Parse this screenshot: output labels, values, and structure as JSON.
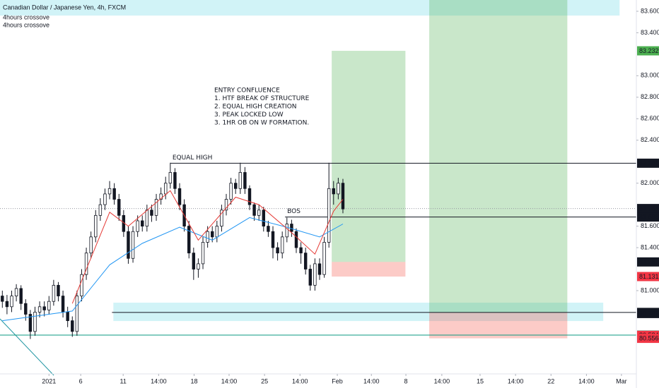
{
  "chart_data": {
    "type": "candlestick",
    "title": "Canadian Dollar / Japanese Yen, 4h, FXCM",
    "indicator_labels": [
      "4hours crossove",
      "4hours crossove"
    ],
    "annotation_lines": [
      "ENTRY CONFLUENCE",
      "1. HTF BREAK OF STRUCTURE",
      "2. EQUAL HIGH CREATION",
      "3. PEAK LOCKED LOW",
      "3.  1HR OB ON W FORMATION."
    ],
    "open": [
      80.95,
      80.9,
      80.85,
      80.95,
      81.02,
      80.88,
      80.78,
      80.62,
      80.8,
      80.85,
      80.82,
      80.9,
      81.05,
      80.95,
      80.8,
      80.72,
      80.62,
      80.95,
      81.15,
      81.35,
      81.5,
      81.7,
      81.8,
      81.9,
      81.95,
      81.85,
      81.7,
      81.55,
      81.3,
      81.55,
      81.65,
      81.6,
      81.75,
      81.7,
      81.85,
      81.9,
      82.0,
      82.1,
      81.95,
      81.8,
      81.6,
      81.35,
      81.2,
      81.25,
      81.45,
      81.55,
      81.5,
      81.6,
      81.75,
      81.85,
      82.0,
      81.95,
      82.1,
      81.95,
      81.8,
      81.7,
      81.75,
      81.6,
      81.55,
      81.4,
      81.35,
      81.5,
      81.62,
      81.55,
      81.4,
      81.35,
      81.2,
      81.05,
      81.25,
      81.15,
      81.45,
      81.95,
      81.9,
      82.0
    ],
    "high": [
      81.0,
      80.96,
      81.0,
      81.06,
      81.05,
      80.92,
      80.82,
      80.85,
      80.9,
      80.9,
      80.95,
      81.1,
      81.08,
      81.0,
      80.85,
      80.76,
      81.0,
      81.2,
      81.4,
      81.55,
      81.75,
      81.86,
      81.95,
      82.02,
      82.0,
      81.9,
      81.75,
      81.6,
      81.6,
      81.7,
      81.7,
      81.8,
      81.8,
      81.9,
      81.96,
      82.06,
      82.19,
      82.14,
      82.0,
      81.85,
      81.65,
      81.4,
      81.3,
      81.5,
      81.6,
      81.6,
      81.65,
      81.8,
      81.9,
      82.05,
      82.04,
      82.19,
      82.15,
      81.98,
      81.82,
      81.8,
      81.78,
      81.65,
      81.6,
      81.45,
      81.55,
      81.68,
      81.66,
      81.58,
      81.45,
      81.4,
      81.24,
      81.3,
      81.3,
      81.5,
      82.19,
      82.02,
      82.05,
      82.04
    ],
    "low": [
      80.84,
      80.78,
      80.8,
      80.9,
      80.82,
      80.72,
      80.55,
      80.58,
      80.75,
      80.76,
      80.78,
      80.86,
      80.9,
      80.75,
      80.66,
      80.57,
      80.58,
      80.9,
      81.1,
      81.3,
      81.45,
      81.65,
      81.75,
      81.85,
      81.8,
      81.65,
      81.5,
      81.25,
      81.26,
      81.5,
      81.55,
      81.55,
      81.64,
      81.65,
      81.8,
      81.85,
      81.95,
      81.9,
      81.75,
      81.55,
      81.3,
      81.1,
      81.12,
      81.2,
      81.4,
      81.45,
      81.45,
      81.55,
      81.7,
      81.8,
      81.9,
      81.9,
      81.9,
      81.75,
      81.65,
      81.65,
      81.55,
      81.5,
      81.3,
      81.28,
      81.3,
      81.45,
      81.5,
      81.35,
      81.25,
      81.15,
      81.0,
      81.0,
      81.1,
      81.12,
      81.4,
      81.8,
      81.85,
      81.72
    ],
    "close": [
      80.9,
      80.85,
      80.95,
      81.02,
      80.88,
      80.78,
      80.62,
      80.8,
      80.85,
      80.82,
      80.9,
      81.05,
      80.95,
      80.8,
      80.72,
      80.62,
      80.95,
      81.15,
      81.35,
      81.5,
      81.7,
      81.8,
      81.9,
      81.95,
      81.85,
      81.7,
      81.55,
      81.3,
      81.55,
      81.65,
      81.6,
      81.75,
      81.7,
      81.85,
      81.9,
      82.0,
      82.1,
      81.95,
      81.8,
      81.6,
      81.35,
      81.2,
      81.25,
      81.45,
      81.55,
      81.5,
      81.6,
      81.75,
      81.85,
      82.0,
      81.95,
      82.1,
      81.95,
      81.8,
      81.7,
      81.75,
      81.6,
      81.55,
      81.4,
      81.35,
      81.5,
      81.62,
      81.55,
      81.4,
      81.35,
      81.2,
      81.05,
      81.25,
      81.15,
      81.45,
      81.95,
      81.9,
      82.0,
      81.76
    ],
    "series": [
      {
        "color": "#2196f3",
        "x": [
          0,
          15,
          23,
          30,
          38,
          45,
          53,
          61,
          68,
          73
        ],
        "values": [
          80.72,
          80.81,
          81.24,
          81.44,
          81.59,
          81.47,
          81.68,
          81.59,
          81.5,
          81.62
        ]
      },
      {
        "color": "#e53935",
        "x": [
          15,
          23,
          27,
          36,
          42,
          50,
          55,
          62,
          67,
          71,
          73
        ],
        "values": [
          80.88,
          81.73,
          81.6,
          81.93,
          81.47,
          81.87,
          81.8,
          81.54,
          81.34,
          81.74,
          81.85
        ]
      }
    ],
    "xlim": [
      -0.5,
      135.9
    ],
    "ylim": [
      80.225,
      83.705
    ],
    "xticks": [
      {
        "value": 10,
        "label": "2021"
      },
      {
        "value": 16.8,
        "label": "6"
      },
      {
        "value": 25.9,
        "label": "11"
      },
      {
        "value": 33.5,
        "label": "14:00"
      },
      {
        "value": 41.1,
        "label": "18"
      },
      {
        "value": 48.6,
        "label": "14:00"
      },
      {
        "value": 56.2,
        "label": "25"
      },
      {
        "value": 63.8,
        "label": "14:00"
      },
      {
        "value": 71.8,
        "label": "Feb"
      },
      {
        "value": 79.1,
        "label": "14:00"
      },
      {
        "value": 86.5,
        "label": "8"
      },
      {
        "value": 94.2,
        "label": "14:00"
      },
      {
        "value": 102.4,
        "label": "15"
      },
      {
        "value": 110,
        "label": "14:00"
      },
      {
        "value": 117.6,
        "label": "22"
      },
      {
        "value": 125.2,
        "label": "14:00"
      },
      {
        "value": 132.7,
        "label": "Mar"
      }
    ],
    "yticks": [
      {
        "value": 83.6,
        "label": "83.600"
      },
      {
        "value": 83.4,
        "label": "83.400"
      },
      {
        "value": 83.0,
        "label": "83.000"
      },
      {
        "value": 82.8,
        "label": "82.800"
      },
      {
        "value": 82.6,
        "label": "82.600"
      },
      {
        "value": 82.4,
        "label": "82.400"
      },
      {
        "value": 82.0,
        "label": "82.000"
      },
      {
        "value": 81.6,
        "label": "81.600"
      },
      {
        "value": 81.4,
        "label": "81.400"
      },
      {
        "value": 81.0,
        "label": "81.000"
      }
    ],
    "zones": [
      {
        "x": [
          -0.5,
          132.3
        ],
        "y": [
          83.56,
          83.705
        ],
        "color": "rgba(0,188,212,0.18)"
      },
      {
        "x": [
          23.8,
          128.8
        ],
        "y": [
          80.717,
          80.888
        ],
        "color": "rgba(0,188,212,0.18)"
      },
      {
        "x": [
          70.6,
          86.4
        ],
        "y": [
          81.267,
          83.232
        ],
        "color": "rgba(76,175,80,0.3)"
      },
      {
        "x": [
          70.6,
          86.4
        ],
        "y": [
          81.131,
          81.267
        ],
        "color": "rgba(244,67,54,0.28)"
      },
      {
        "x": [
          91.5,
          121.1
        ],
        "y": [
          80.797,
          83.705
        ],
        "color": "rgba(76,175,80,0.3)"
      },
      {
        "x": [
          91.5,
          121.1
        ],
        "y": [
          80.556,
          80.797
        ],
        "color": "rgba(244,67,54,0.28)"
      }
    ],
    "levels": [
      {
        "price": 82.186,
        "x_start": 36,
        "color": "#131722",
        "label": "EQUAL HIGH"
      },
      {
        "price": 81.685,
        "x_start": 60.6,
        "color": "#131722",
        "label": "BOS"
      },
      {
        "price": 80.797,
        "x_start": 23.5,
        "color": "#131722"
      },
      {
        "price": 80.586,
        "x_start": -0.5,
        "color": "#089981"
      },
      {
        "price": 81.764,
        "x_start": -0.5,
        "color": "#9598a1",
        "dashed": true
      }
    ],
    "price_tags": [
      {
        "value": 83.232,
        "color": "#4caf50"
      },
      {
        "value": 82.186,
        "color": "#131722"
      },
      {
        "value": 81.764,
        "color": "#131722"
      },
      {
        "value": 81.685,
        "color": "#131722"
      },
      {
        "value": 81.267,
        "color": "#131722"
      },
      {
        "value": 81.131,
        "color": "#f23645"
      },
      {
        "value": 80.797,
        "color": "#131722"
      },
      {
        "value": 80.787,
        "color": "#131722"
      },
      {
        "value": 80.586,
        "color": "#089981"
      },
      {
        "value": 80.584,
        "color": "#f23645"
      },
      {
        "value": 80.556,
        "color": "#f23645"
      }
    ]
  }
}
